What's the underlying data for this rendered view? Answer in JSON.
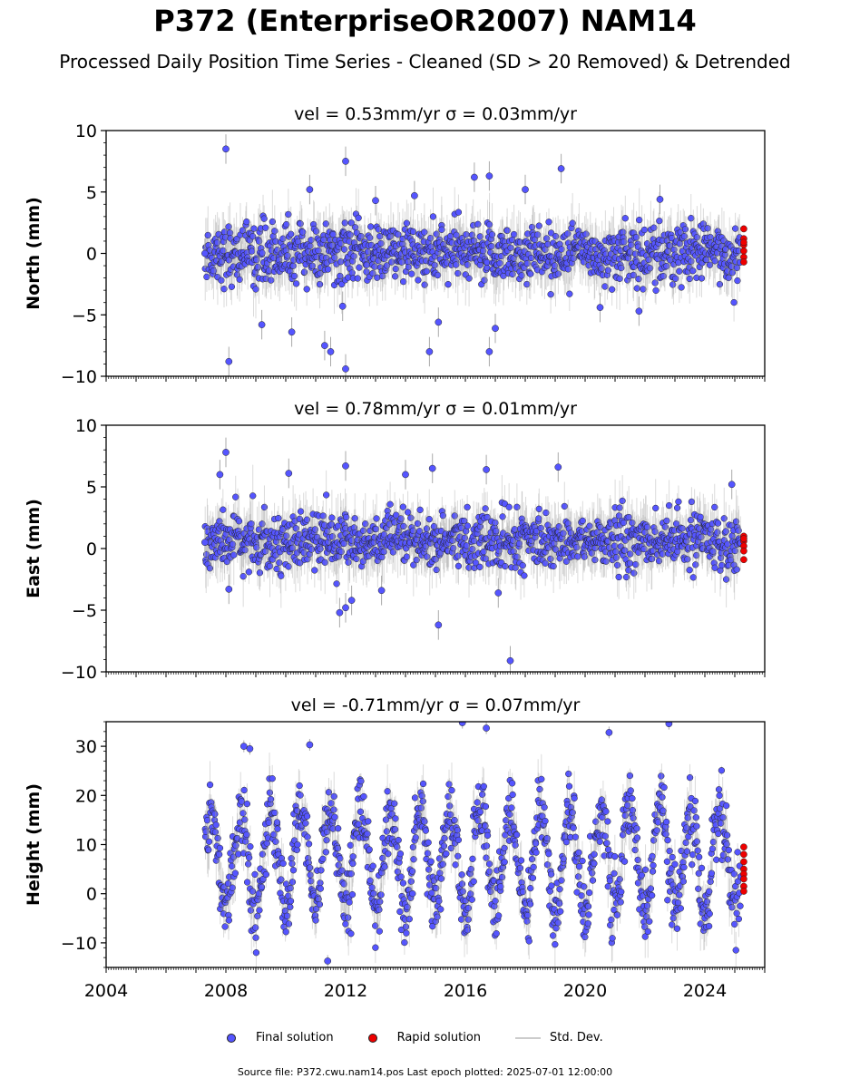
{
  "title": "P372 (EnterpriseOR2007) NAM14",
  "subtitle": "Processed Daily Position Time Series - Cleaned (SD > 20 Removed) & Detrended",
  "footer": "Source file: P372.cwu.nam14.pos  Last epoch plotted: 2025-07-01 12:00:00",
  "legend": {
    "final": "Final solution",
    "rapid": "Rapid solution",
    "std": "Std. Dev."
  },
  "colors": {
    "final": "#5555ff",
    "rapid": "#ee0000",
    "errorbar": "#bbbbbb"
  },
  "chart_data": [
    {
      "type": "scatter",
      "panel": "north",
      "title": "vel = 0.53mm/yr   σ = 0.03mm/yr",
      "ylabel": "North (mm)",
      "xlim": [
        2004,
        2026
      ],
      "ylim": [
        -10,
        10
      ],
      "yticks": [
        -10,
        -5,
        0,
        5,
        10
      ],
      "xticks": [
        2004,
        2008,
        2012,
        2016,
        2020,
        2024
      ],
      "show_xtick_labels": false,
      "data_start": 2007.3,
      "data_end": 2025.2,
      "scatter_sd": 1.2,
      "series": [
        {
          "name": "Final solution",
          "kind": "final",
          "x": [
            2007.3,
            2008.0,
            2008.1,
            2009.2,
            2010.2,
            2010.8,
            2011.3,
            2011.5,
            2011.9,
            2012.0,
            2012.0,
            2013.0,
            2014.3,
            2014.8,
            2015.1,
            2016.3,
            2016.8,
            2016.8,
            2017.0,
            2018.0,
            2019.2,
            2020.5,
            2021.8,
            2022.5
          ],
          "y": [
            0.0,
            8.5,
            -8.8,
            -5.8,
            -6.4,
            5.2,
            -7.5,
            -8.0,
            -4.3,
            7.5,
            -9.4,
            4.3,
            4.7,
            -8.0,
            -5.6,
            6.2,
            6.3,
            -8.0,
            -6.1,
            5.2,
            6.9,
            -4.4,
            -4.7,
            4.4
          ]
        },
        {
          "name": "Rapid solution",
          "kind": "rapid",
          "x": [
            2025.3,
            2025.3,
            2025.3,
            2025.3,
            2025.3,
            2025.3,
            2025.3
          ],
          "y": [
            2.0,
            1.2,
            0.7,
            0.2,
            -0.3,
            -0.7,
            0.9
          ]
        }
      ]
    },
    {
      "type": "scatter",
      "panel": "east",
      "title": "vel = 0.78mm/yr   σ = 0.01mm/yr",
      "ylabel": "East (mm)",
      "xlim": [
        2004,
        2026
      ],
      "ylim": [
        -10,
        10
      ],
      "yticks": [
        -10,
        -5,
        0,
        5,
        10
      ],
      "xticks": [
        2004,
        2008,
        2012,
        2016,
        2020,
        2024
      ],
      "show_xtick_labels": false,
      "data_start": 2007.3,
      "data_end": 2025.2,
      "scatter_sd": 1.1,
      "series": [
        {
          "name": "Final solution",
          "kind": "final",
          "x": [
            2007.3,
            2007.8,
            2008.0,
            2008.1,
            2010.1,
            2011.8,
            2012.0,
            2012.0,
            2012.2,
            2013.2,
            2014.0,
            2014.9,
            2015.1,
            2016.7,
            2017.1,
            2017.5,
            2019.1,
            2024.9
          ],
          "y": [
            0.5,
            6.0,
            7.8,
            -3.3,
            6.1,
            -5.2,
            6.7,
            -4.8,
            -4.2,
            -3.4,
            6.0,
            6.5,
            -6.2,
            6.4,
            -3.6,
            -9.1,
            6.6,
            5.2
          ]
        },
        {
          "name": "Rapid solution",
          "kind": "rapid",
          "x": [
            2025.3,
            2025.3,
            2025.3,
            2025.3,
            2025.3,
            2025.3
          ],
          "y": [
            1.0,
            0.6,
            0.2,
            -0.2,
            -0.9,
            0.8
          ]
        }
      ]
    },
    {
      "type": "scatter",
      "panel": "height",
      "title": "vel = -0.71mm/yr   σ = 0.07mm/yr",
      "ylabel": "Height (mm)",
      "xlim": [
        2004,
        2026
      ],
      "ylim": [
        -15,
        35
      ],
      "yticks": [
        -10,
        0,
        10,
        20,
        30
      ],
      "xticks": [
        2004,
        2008,
        2012,
        2016,
        2020,
        2024
      ],
      "xticklabels": [
        "2004",
        "2008",
        "2012",
        "2016",
        "2020",
        "2024"
      ],
      "show_xtick_labels": true,
      "data_start": 2007.3,
      "data_end": 2025.2,
      "seasonal_amplitude": 10,
      "scatter_sd": 3.5,
      "series": [
        {
          "name": "Final solution",
          "kind": "final",
          "x": [
            2008.6,
            2008.8,
            2010.8,
            2011.4,
            2015.9,
            2016.7,
            2020.8,
            2022.8
          ],
          "y": [
            30.0,
            29.5,
            30.3,
            -13.7,
            34.8,
            33.7,
            32.8,
            34.6
          ]
        },
        {
          "name": "Rapid solution",
          "kind": "rapid",
          "x": [
            2025.3,
            2025.3,
            2025.3,
            2025.3,
            2025.3,
            2025.3,
            2025.3,
            2025.3
          ],
          "y": [
            9.5,
            8.0,
            6.5,
            5.0,
            4.0,
            3.0,
            1.5,
            0.5
          ]
        }
      ]
    }
  ]
}
